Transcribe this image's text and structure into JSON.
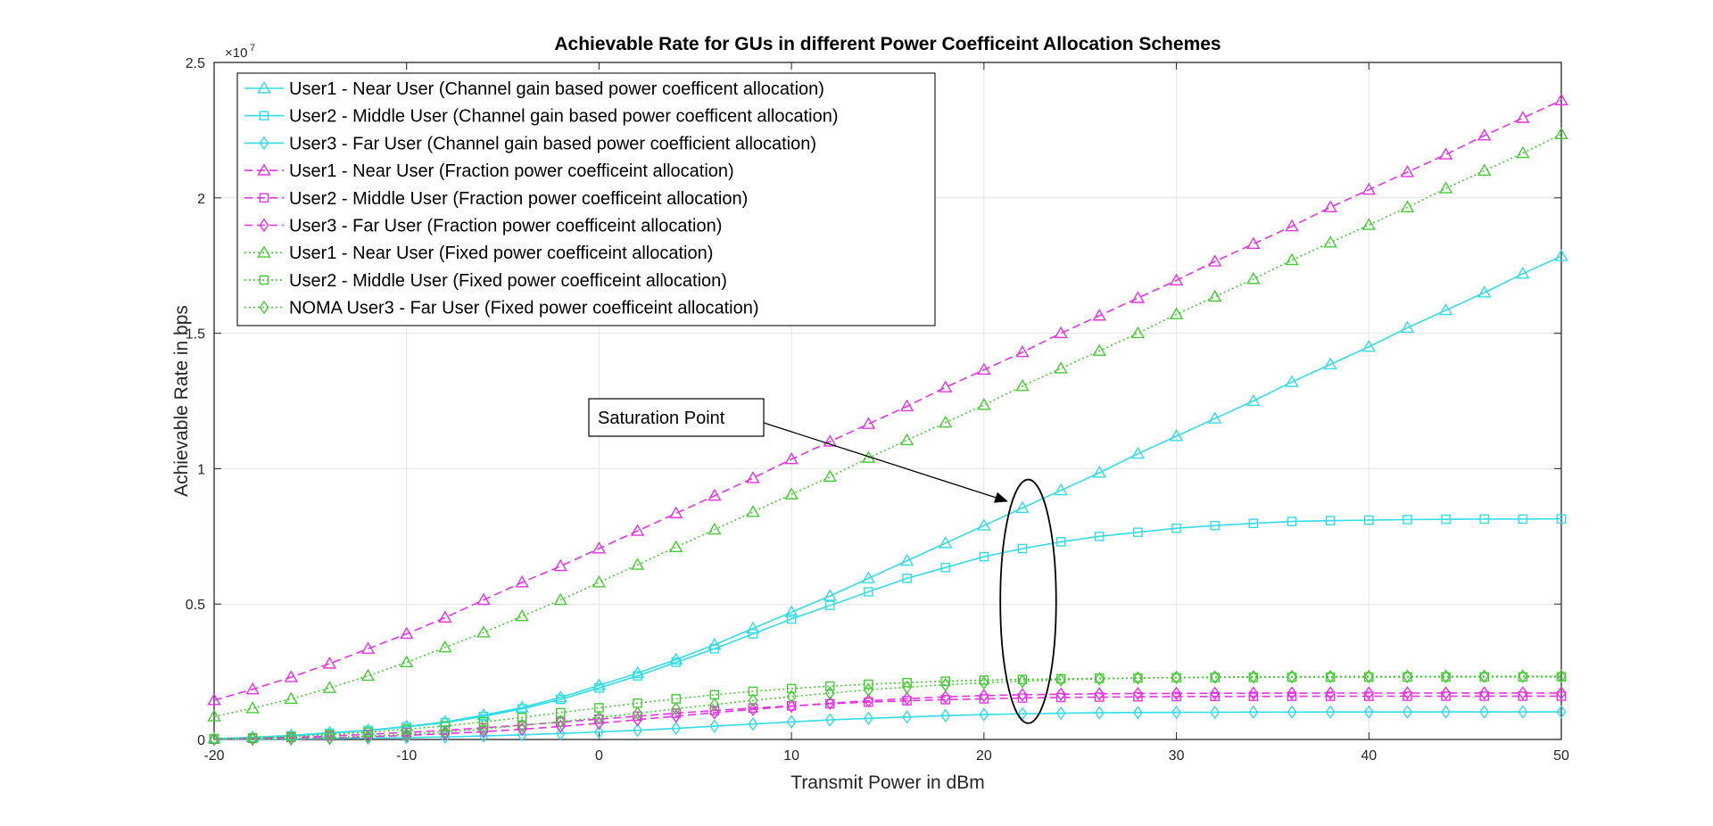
{
  "chart_data": {
    "type": "line",
    "title": "Achievable Rate for GUs in different Power Coefficeint Allocation Schemes",
    "xlabel": "Transmit Power in dBm",
    "ylabel": "Achievable Rate in bps",
    "y_exponent_base": "×10",
    "y_exponent_power": "7",
    "xlim": [
      -20,
      50
    ],
    "ylim": [
      0,
      25000000
    ],
    "xticks": [
      -20,
      -10,
      0,
      10,
      20,
      30,
      40,
      50
    ],
    "xtick_labels": [
      "-20",
      "-10",
      "0",
      "10",
      "20",
      "30",
      "40",
      "50"
    ],
    "yticks": [
      0,
      5000000,
      10000000,
      15000000,
      20000000,
      25000000
    ],
    "ytick_labels": [
      "0",
      "0.5",
      "1",
      "1.5",
      "2",
      "2.5"
    ],
    "grid": true,
    "legend_position": "top-left",
    "x": [
      -20,
      -18,
      -16,
      -14,
      -12,
      -10,
      -8,
      -6,
      -4,
      -2,
      0,
      2,
      4,
      6,
      8,
      10,
      12,
      14,
      16,
      18,
      20,
      22,
      24,
      26,
      28,
      30,
      32,
      34,
      36,
      38,
      40,
      42,
      44,
      46,
      48,
      50
    ],
    "series": [
      {
        "name": "User1 - Near User (Channel gain based power coefficent allocation)",
        "color": "#33dde6",
        "dash": "solid",
        "marker": "triangle",
        "values": [
          30000,
          80000,
          150000,
          250000,
          340000,
          480000,
          650000,
          900000,
          1180000,
          1550000,
          2000000,
          2450000,
          2950000,
          3500000,
          4100000,
          4700000,
          5300000,
          5950000,
          6600000,
          7250000,
          7900000,
          8550000,
          9200000,
          9850000,
          10550000,
          11200000,
          11850000,
          12500000,
          13200000,
          13850000,
          14500000,
          15200000,
          15850000,
          16500000,
          17200000,
          17850000
        ]
      },
      {
        "name": "User2 - Middle User (Channel gain based power coefficent allocation)",
        "color": "#33dde6",
        "dash": "solid",
        "marker": "square",
        "values": [
          20000,
          60000,
          130000,
          230000,
          330000,
          460000,
          620000,
          850000,
          1130000,
          1480000,
          1900000,
          2350000,
          2850000,
          3350000,
          3900000,
          4450000,
          4950000,
          5450000,
          5950000,
          6350000,
          6750000,
          7050000,
          7300000,
          7500000,
          7650000,
          7800000,
          7900000,
          7980000,
          8050000,
          8080000,
          8100000,
          8120000,
          8130000,
          8140000,
          8140000,
          8150000
        ]
      },
      {
        "name": "User3 - Far User (Channel gain based power coefficient allocation)",
        "color": "#33dde6",
        "dash": "solid",
        "marker": "diamond",
        "values": [
          5000,
          10000,
          20000,
          35000,
          50000,
          70000,
          95000,
          130000,
          170000,
          220000,
          280000,
          340000,
          410000,
          490000,
          570000,
          650000,
          720000,
          780000,
          830000,
          880000,
          920000,
          950000,
          970000,
          985000,
          995000,
          1000000,
          1005000,
          1010000,
          1012000,
          1014000,
          1015000,
          1016000,
          1017000,
          1018000,
          1018000,
          1019000
        ]
      },
      {
        "name": "User1 - Near User (Fraction power coefficeint allocation)",
        "color": "#e633e6",
        "dash": "dashed",
        "marker": "triangle",
        "values": [
          1450000,
          1850000,
          2300000,
          2800000,
          3350000,
          3900000,
          4500000,
          5150000,
          5800000,
          6400000,
          7050000,
          7700000,
          8350000,
          9000000,
          9650000,
          10350000,
          11000000,
          11650000,
          12300000,
          13000000,
          13650000,
          14300000,
          15000000,
          15650000,
          16300000,
          16950000,
          17650000,
          18300000,
          18950000,
          19650000,
          20300000,
          20950000,
          21600000,
          22300000,
          22950000,
          23600000
        ]
      },
      {
        "name": "User2 - Middle User (Fraction power coefficeint allocation)",
        "color": "#e633e6",
        "dash": "dashed",
        "marker": "square",
        "values": [
          10000,
          40000,
          80000,
          130000,
          190000,
          260000,
          340000,
          430000,
          530000,
          640000,
          750000,
          860000,
          970000,
          1070000,
          1160000,
          1240000,
          1320000,
          1380000,
          1430000,
          1470000,
          1500000,
          1530000,
          1550000,
          1565000,
          1575000,
          1583000,
          1588000,
          1592000,
          1594000,
          1596000,
          1597000,
          1598000,
          1599000,
          1600000,
          1600000,
          1600000
        ]
      },
      {
        "name": "User3 - Far User (Fraction power coefficeint allocation)",
        "color": "#e633e6",
        "dash": "dashed",
        "marker": "diamond",
        "values": [
          5000,
          15000,
          35000,
          60000,
          100000,
          150000,
          210000,
          290000,
          380000,
          480000,
          600000,
          730000,
          860000,
          990000,
          1110000,
          1230000,
          1340000,
          1430000,
          1510000,
          1570000,
          1620000,
          1650000,
          1670000,
          1685000,
          1695000,
          1700000,
          1705000,
          1708000,
          1710000,
          1712000,
          1713000,
          1714000,
          1715000,
          1716000,
          1716000,
          1717000
        ]
      },
      {
        "name": "User1 - Near User (Fixed power coefficeint allocation)",
        "color": "#44cc33",
        "dash": "dotted",
        "marker": "triangle",
        "values": [
          850000,
          1150000,
          1500000,
          1900000,
          2350000,
          2850000,
          3400000,
          3950000,
          4550000,
          5150000,
          5800000,
          6450000,
          7100000,
          7750000,
          8400000,
          9050000,
          9700000,
          10400000,
          11050000,
          11700000,
          12350000,
          13050000,
          13700000,
          14350000,
          15000000,
          15700000,
          16350000,
          17000000,
          17700000,
          18350000,
          19000000,
          19650000,
          20350000,
          21000000,
          21650000,
          22350000
        ]
      },
      {
        "name": "User2 - Middle User (Fixed power coefficeint allocation)",
        "color": "#44cc33",
        "dash": "dotted",
        "marker": "square",
        "values": [
          20000,
          60000,
          110000,
          180000,
          270000,
          380000,
          500000,
          650000,
          810000,
          990000,
          1170000,
          1340000,
          1500000,
          1650000,
          1780000,
          1880000,
          1970000,
          2040000,
          2100000,
          2150000,
          2190000,
          2220000,
          2240000,
          2260000,
          2270000,
          2280000,
          2290000,
          2295000,
          2300000,
          2302000,
          2304000,
          2306000,
          2308000,
          2310000,
          2310000,
          2312000
        ]
      },
      {
        "name": "NOMA User3 - Far User (Fixed power coefficeint allocation)",
        "color": "#44cc33",
        "dash": "dotted",
        "marker": "diamond",
        "values": [
          5000,
          15000,
          35000,
          70000,
          120000,
          190000,
          280000,
          390000,
          520000,
          660000,
          810000,
          970000,
          1130000,
          1290000,
          1440000,
          1580000,
          1710000,
          1830000,
          1930000,
          2020000,
          2090000,
          2150000,
          2200000,
          2240000,
          2270000,
          2290000,
          2305000,
          2315000,
          2320000,
          2325000,
          2328000,
          2330000,
          2332000,
          2334000,
          2335000,
          2336000
        ]
      }
    ],
    "annotations": [
      {
        "text": "Saturation Point",
        "arrow_to_x": 21.2,
        "arrow_to_y": 8800000
      }
    ],
    "ellipse": {
      "center_x": 22.3,
      "center_y": 5100000,
      "radius_x": 1.45,
      "radius_y": 4500000
    }
  }
}
